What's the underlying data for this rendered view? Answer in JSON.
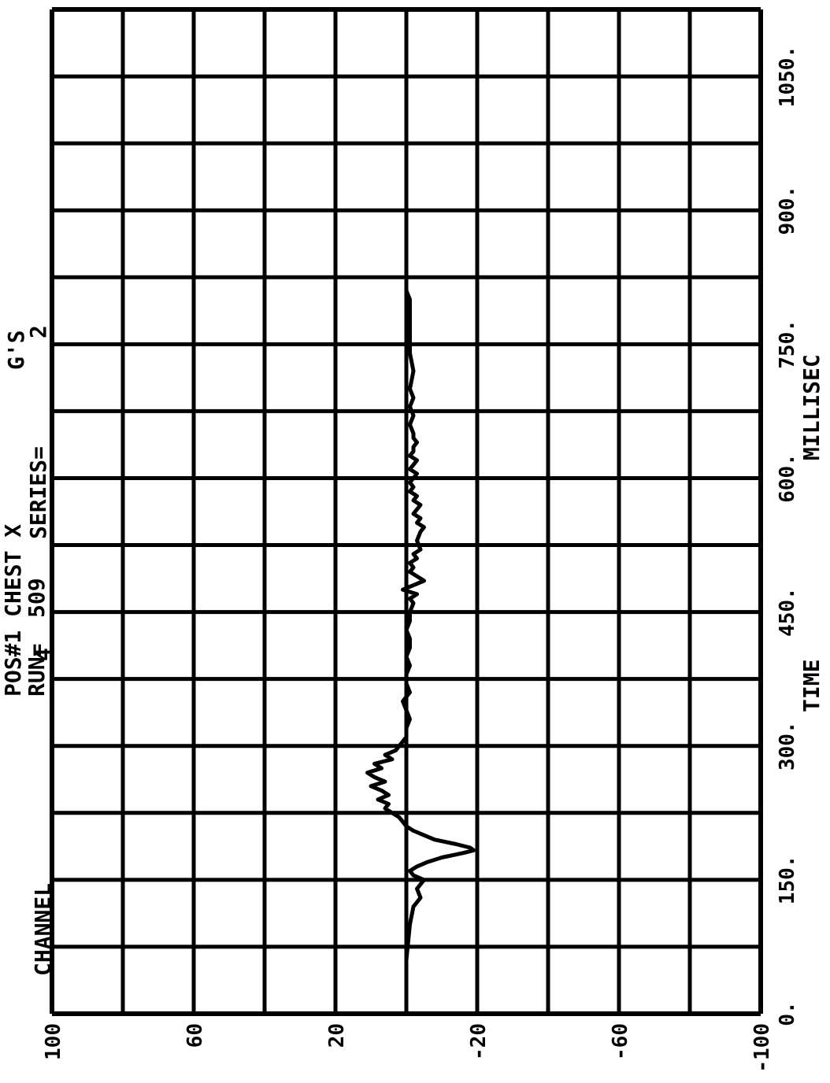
{
  "chart_data": {
    "type": "line",
    "header": {
      "channel_label": "CHANNEL",
      "channel_value": "4",
      "run_label": "RUN=",
      "run_value": "509",
      "series_label": "SERIES=",
      "series_value": "2",
      "channel_name": "POS#1 CHEST X",
      "units": "G'S"
    },
    "xlabel_left": "TIME",
    "xlabel_right": "MILLISEC",
    "xlim": [
      0,
      1125
    ],
    "ylim": [
      -100,
      100
    ],
    "x_ticks": [
      "0.",
      "150.",
      "300.",
      "450.",
      "600.",
      "750.",
      "900.",
      "1050."
    ],
    "x_tick_values": [
      0,
      150,
      300,
      450,
      600,
      750,
      900,
      1050
    ],
    "y_ticks": [
      "100",
      "60",
      "20",
      "-20",
      "-60",
      "-100"
    ],
    "y_tick_values": [
      100,
      60,
      20,
      -20,
      -60,
      -100
    ],
    "grid": true,
    "series": [
      {
        "x": [
          0,
          60,
          100,
          120,
          130,
          140,
          150,
          155,
          160,
          165,
          170,
          175,
          180,
          183,
          186,
          190,
          195,
          200,
          205,
          210,
          215,
          220,
          225,
          230,
          235,
          240,
          245,
          250,
          255,
          260,
          265,
          270,
          275,
          280,
          285,
          290,
          295,
          300,
          305,
          310,
          320,
          330,
          340,
          350,
          360,
          370,
          380,
          390,
          400,
          410,
          420,
          430,
          440,
          450,
          460,
          465,
          470,
          475,
          480,
          485,
          490,
          495,
          500,
          505,
          510,
          515,
          520,
          530,
          540,
          545,
          550,
          555,
          560,
          565,
          570,
          575,
          580,
          585,
          590,
          595,
          600,
          605,
          610,
          615,
          620,
          625,
          630,
          635,
          640,
          645,
          650,
          660,
          670,
          680,
          690,
          700,
          720,
          740,
          760,
          780,
          800,
          810
        ],
        "y": [
          0,
          0,
          -1,
          -2,
          -4,
          -3,
          -5,
          -2,
          -1,
          -3,
          -6,
          -10,
          -16,
          -19,
          -18,
          -14,
          -8,
          -5,
          -2,
          0,
          1,
          2,
          4,
          6,
          5,
          8,
          5,
          7,
          10,
          6,
          9,
          11,
          7,
          9,
          4,
          6,
          3,
          2,
          1,
          0,
          0,
          -1,
          0,
          1,
          -1,
          0,
          0,
          -1,
          0,
          -1,
          -1,
          0,
          -1,
          -1,
          -2,
          -1,
          -3,
          1,
          -2,
          -5,
          -3,
          -1,
          -2,
          -1,
          -3,
          -2,
          -4,
          -3,
          -4,
          -5,
          -3,
          -4,
          -2,
          -3,
          -4,
          -2,
          -3,
          -1,
          -2,
          -1,
          -2,
          -3,
          -1,
          -2,
          -3,
          -1,
          -2,
          -2,
          -3,
          -2,
          -2,
          -1,
          -2,
          -1,
          -2,
          -1,
          -2,
          -1,
          -1,
          -1,
          -1,
          0
        ],
        "stroke_width": 5
      }
    ]
  }
}
